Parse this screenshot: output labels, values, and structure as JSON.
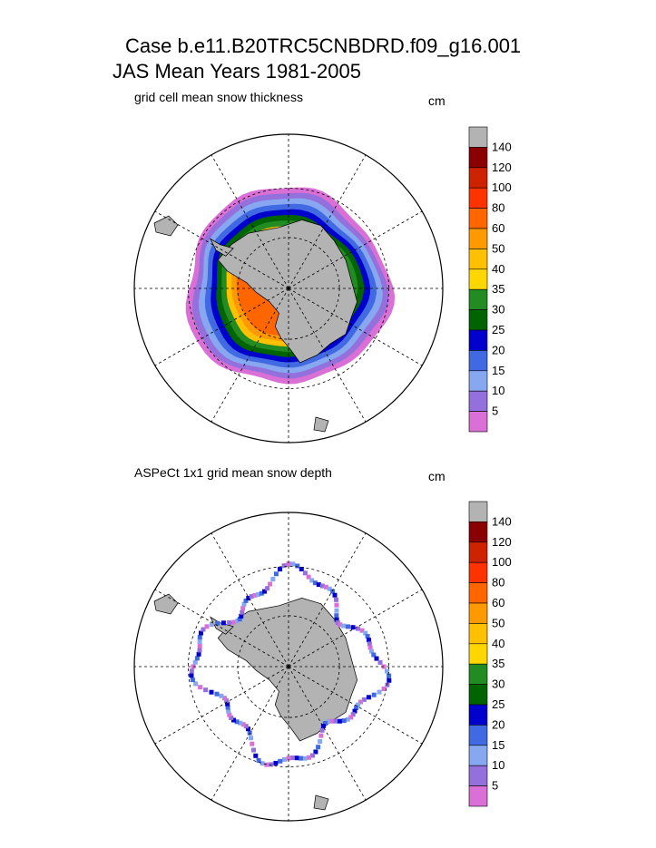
{
  "title": {
    "line1": "Case b.e11.B20TRC5CNBDRD.f09_g16.001",
    "line2": "JAS Mean   Years 1981-2005"
  },
  "chart_data": [
    {
      "type": "heatmap",
      "projection": "south-polar-stereographic",
      "title": "grid cell mean snow thickness",
      "unit": "cm",
      "colorbar": {
        "levels": [
          "5",
          "10",
          "15",
          "20",
          "25",
          "30",
          "35",
          "40",
          "50",
          "60",
          "80",
          "100",
          "120",
          "140"
        ],
        "colors": [
          "#da70d6",
          "#9370db",
          "#87a8f0",
          "#4169e1",
          "#0000cd",
          "#006400",
          "#228b22",
          "#ffd700",
          "#ffc000",
          "#ff9900",
          "#ff6600",
          "#ff3300",
          "#cc2200",
          "#8b0000",
          "#b3b3b3"
        ]
      },
      "bands_cm": [
        5,
        10,
        15,
        20,
        25,
        30,
        35,
        50,
        60,
        80
      ]
    },
    {
      "type": "heatmap",
      "projection": "south-polar-stereographic",
      "title": "ASPeCt 1x1 grid mean snow depth",
      "unit": "cm",
      "colorbar": {
        "levels": [
          "5",
          "10",
          "15",
          "20",
          "25",
          "30",
          "35",
          "40",
          "50",
          "60",
          "80",
          "100",
          "120",
          "140"
        ],
        "colors": [
          "#da70d6",
          "#9370db",
          "#87a8f0",
          "#4169e1",
          "#0000cd",
          "#006400",
          "#228b22",
          "#ffd700",
          "#ffc000",
          "#ff9900",
          "#ff6600",
          "#ff3300",
          "#cc2200",
          "#8b0000",
          "#b3b3b3"
        ]
      }
    }
  ]
}
